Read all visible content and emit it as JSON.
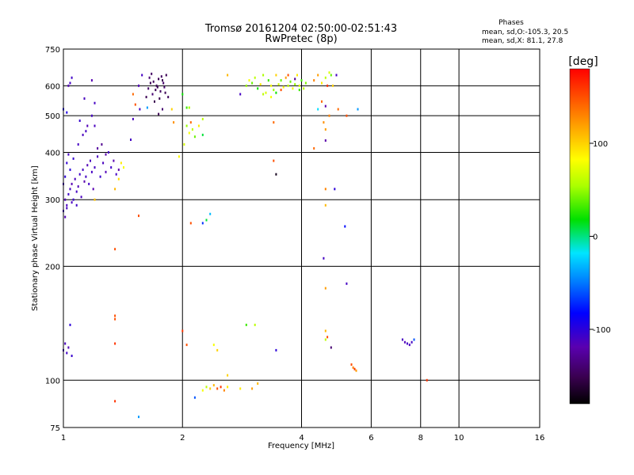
{
  "chart_data": {
    "type": "scatter",
    "title": "Tromsø 20161204 02:50:00-02:51:43",
    "subtitle": "RwPretec (8p)",
    "stats": {
      "heading": "Phases",
      "line1": "mean, sd,O:-105.3, 20.5",
      "line2": "mean, sd,X:  81.1, 27.8"
    },
    "xlabel": "Frequency [MHz]",
    "ylabel": "Stationary phase Virtual Height [km]",
    "x_scale": "log",
    "y_scale": "log",
    "xlim": [
      1,
      16
    ],
    "ylim": [
      75,
      750
    ],
    "x_ticks": [
      1,
      2,
      4,
      6,
      8,
      10,
      16
    ],
    "x_tick_labels": [
      "1",
      "2",
      "4",
      "6",
      "8",
      "10",
      "16"
    ],
    "y_ticks": [
      75,
      100,
      200,
      300,
      400,
      500,
      600,
      750
    ],
    "y_tick_labels": [
      "75",
      "100",
      "200",
      "300",
      "400",
      "500",
      "600",
      "750"
    ],
    "grid": true,
    "colorbar": {
      "label": "[deg]",
      "range": [
        -180,
        180
      ],
      "ticks": [
        100,
        0,
        -100
      ],
      "tick_labels": [
        "100",
        "0",
        "-100"
      ]
    },
    "points": [
      [
        1.0,
        280,
        -110
      ],
      [
        1.01,
        300,
        -115
      ],
      [
        1.02,
        290,
        -112
      ],
      [
        1.03,
        310,
        -108
      ],
      [
        1.04,
        320,
        -110
      ],
      [
        1.05,
        330,
        -118
      ],
      [
        1.06,
        300,
        -105
      ],
      [
        1.07,
        340,
        -112
      ],
      [
        1.08,
        315,
        -110
      ],
      [
        1.09,
        325,
        -115
      ],
      [
        1.1,
        350,
        -108
      ],
      [
        1.11,
        305,
        -112
      ],
      [
        1.12,
        360,
        -110
      ],
      [
        1.13,
        335,
        -120
      ],
      [
        1.14,
        345,
        -110
      ],
      [
        1.15,
        370,
        -115
      ],
      [
        1.16,
        330,
        -108
      ],
      [
        1.17,
        380,
        -112
      ],
      [
        1.18,
        355,
        -110
      ],
      [
        1.19,
        320,
        -118
      ],
      [
        1.2,
        365,
        -110
      ],
      [
        1.22,
        390,
        -112
      ],
      [
        1.24,
        345,
        -106
      ],
      [
        1.26,
        375,
        -112
      ],
      [
        1.28,
        355,
        -115
      ],
      [
        1.3,
        400,
        -110
      ],
      [
        1.32,
        365,
        -108
      ],
      [
        1.34,
        380,
        -118
      ],
      [
        1.36,
        350,
        -110
      ],
      [
        1.38,
        360,
        -120
      ],
      [
        1.01,
        345,
        -100
      ],
      [
        1.02,
        375,
        -102
      ],
      [
        1.04,
        360,
        -98
      ],
      [
        1.06,
        385,
        -104
      ],
      [
        1.03,
        395,
        -110
      ],
      [
        1.0,
        330,
        -112
      ],
      [
        1.01,
        270,
        -115
      ],
      [
        1.02,
        285,
        -110
      ],
      [
        1.05,
        295,
        -112
      ],
      [
        1.08,
        290,
        -108
      ],
      [
        1.09,
        420,
        -110
      ],
      [
        1.12,
        445,
        -112
      ],
      [
        1.15,
        470,
        -115
      ],
      [
        1.18,
        500,
        -110
      ],
      [
        1.2,
        470,
        -112
      ],
      [
        1.14,
        455,
        -110
      ],
      [
        1.22,
        410,
        -125
      ],
      [
        1.25,
        420,
        -130
      ],
      [
        1.28,
        395,
        -120
      ],
      [
        1.1,
        485,
        -105
      ],
      [
        1.04,
        610,
        -110
      ],
      [
        1.05,
        630,
        -108
      ],
      [
        1.03,
        600,
        -115
      ],
      [
        1.13,
        555,
        -112
      ],
      [
        1.18,
        620,
        -118
      ],
      [
        1.2,
        540,
        -110
      ],
      [
        1.0,
        520,
        -90
      ],
      [
        1.02,
        510,
        -95
      ],
      [
        1.4,
        375,
        90
      ],
      [
        1.42,
        365,
        80
      ],
      [
        1.38,
        340,
        95
      ],
      [
        1.35,
        320,
        110
      ],
      [
        1.2,
        300,
        105
      ],
      [
        1.48,
        432,
        -110
      ],
      [
        1.5,
        490,
        -112
      ],
      [
        1.55,
        600,
        -115
      ],
      [
        1.56,
        520,
        -108
      ],
      [
        1.58,
        640,
        -110
      ],
      [
        1.62,
        560,
        -150
      ],
      [
        1.64,
        590,
        -145
      ],
      [
        1.66,
        610,
        -150
      ],
      [
        1.68,
        570,
        -140
      ],
      [
        1.7,
        545,
        -152
      ],
      [
        1.72,
        600,
        -148
      ],
      [
        1.74,
        625,
        -150
      ],
      [
        1.76,
        580,
        -146
      ],
      [
        1.78,
        620,
        -150
      ],
      [
        1.8,
        595,
        -142
      ],
      [
        1.82,
        640,
        -150
      ],
      [
        1.84,
        560,
        -148
      ],
      [
        1.65,
        630,
        -140
      ],
      [
        1.67,
        645,
        -146
      ],
      [
        1.75,
        555,
        -152
      ],
      [
        1.79,
        610,
        -144
      ],
      [
        1.73,
        595,
        -150
      ],
      [
        1.69,
        615,
        -148
      ],
      [
        1.81,
        575,
        -150
      ],
      [
        1.77,
        635,
        -146
      ],
      [
        1.71,
        585,
        -150
      ],
      [
        1.78,
        520,
        -140
      ],
      [
        1.74,
        505,
        -150
      ],
      [
        1.52,
        535,
        150
      ],
      [
        1.63,
        525,
        -40
      ],
      [
        1.5,
        570,
        140
      ],
      [
        1.9,
        480,
        125
      ],
      [
        1.88,
        520,
        100
      ],
      [
        2.05,
        470,
        50
      ],
      [
        2.08,
        450,
        80
      ],
      [
        2.1,
        480,
        140
      ],
      [
        2.12,
        460,
        60
      ],
      [
        2.15,
        440,
        40
      ],
      [
        2.2,
        470,
        90
      ],
      [
        2.25,
        490,
        60
      ],
      [
        2.05,
        525,
        30
      ],
      [
        2.02,
        420,
        70
      ],
      [
        1.96,
        390,
        85
      ],
      [
        2.25,
        445,
        10
      ],
      [
        2.0,
        570,
        20
      ],
      [
        2.08,
        525,
        55
      ],
      [
        2.25,
        260,
        -70
      ],
      [
        2.35,
        275,
        -30
      ],
      [
        2.3,
        265,
        10
      ],
      [
        2.1,
        260,
        150
      ],
      [
        2.8,
        570,
        -110
      ],
      [
        2.9,
        600,
        50
      ],
      [
        2.95,
        620,
        80
      ],
      [
        3.0,
        610,
        40
      ],
      [
        3.05,
        630,
        60
      ],
      [
        3.1,
        590,
        20
      ],
      [
        3.15,
        605,
        90
      ],
      [
        3.2,
        640,
        55
      ],
      [
        3.25,
        575,
        70
      ],
      [
        3.3,
        620,
        30
      ],
      [
        3.35,
        600,
        80
      ],
      [
        3.4,
        585,
        50
      ],
      [
        3.45,
        640,
        100
      ],
      [
        3.5,
        605,
        65
      ],
      [
        3.55,
        620,
        40
      ],
      [
        3.6,
        595,
        85
      ],
      [
        3.65,
        630,
        120
      ],
      [
        3.7,
        600,
        60
      ],
      [
        3.75,
        615,
        40
      ],
      [
        3.8,
        590,
        80
      ],
      [
        3.85,
        605,
        50
      ],
      [
        3.9,
        640,
        90
      ],
      [
        3.95,
        600,
        70
      ],
      [
        4.0,
        620,
        30
      ],
      [
        4.05,
        590,
        60
      ],
      [
        3.45,
        575,
        20
      ],
      [
        3.55,
        585,
        150
      ],
      [
        3.7,
        640,
        150
      ],
      [
        3.85,
        625,
        -130
      ],
      [
        3.95,
        585,
        30
      ],
      [
        4.1,
        610,
        45
      ],
      [
        3.2,
        570,
        60
      ],
      [
        3.35,
        560,
        80
      ],
      [
        2.6,
        640,
        110
      ],
      [
        3.4,
        480,
        140
      ],
      [
        3.4,
        380,
        150
      ],
      [
        3.45,
        350,
        -170
      ],
      [
        3.45,
        120,
        -100
      ],
      [
        4.3,
        620,
        130
      ],
      [
        4.4,
        640,
        120
      ],
      [
        4.5,
        610,
        90
      ],
      [
        4.6,
        630,
        60
      ],
      [
        4.7,
        650,
        70
      ],
      [
        4.8,
        600,
        100
      ],
      [
        4.9,
        640,
        -110
      ],
      [
        4.75,
        640,
        40
      ],
      [
        4.65,
        600,
        160
      ],
      [
        4.4,
        520,
        -20
      ],
      [
        4.5,
        545,
        140
      ],
      [
        4.6,
        530,
        -120
      ],
      [
        4.7,
        500,
        130
      ],
      [
        4.55,
        480,
        125
      ],
      [
        4.95,
        520,
        140
      ],
      [
        5.2,
        500,
        150
      ],
      [
        4.6,
        460,
        120
      ],
      [
        4.6,
        430,
        -120
      ],
      [
        4.85,
        320,
        -100
      ],
      [
        4.6,
        320,
        130
      ],
      [
        4.6,
        290,
        110
      ],
      [
        4.3,
        410,
        140
      ],
      [
        5.55,
        520,
        -40
      ],
      [
        4.55,
        210,
        -110
      ],
      [
        5.2,
        180,
        -110
      ],
      [
        4.6,
        175,
        120
      ],
      [
        5.15,
        255,
        -80
      ],
      [
        4.6,
        135,
        110
      ],
      [
        4.65,
        130,
        150
      ],
      [
        4.6,
        128,
        60
      ],
      [
        4.75,
        122,
        -140
      ],
      [
        5.35,
        110,
        150
      ],
      [
        5.4,
        108,
        130
      ],
      [
        5.45,
        107,
        160
      ],
      [
        5.5,
        106,
        120
      ],
      [
        7.2,
        128,
        -110
      ],
      [
        7.3,
        126,
        -115
      ],
      [
        7.4,
        125,
        -108
      ],
      [
        7.5,
        124,
        -112
      ],
      [
        7.6,
        126,
        -110
      ],
      [
        7.7,
        128,
        -60
      ],
      [
        8.3,
        100,
        160
      ],
      [
        1.0,
        120,
        -110
      ],
      [
        1.01,
        125,
        -112
      ],
      [
        1.02,
        118,
        -108
      ],
      [
        1.03,
        122,
        -115
      ],
      [
        1.04,
        140,
        -100
      ],
      [
        1.05,
        116,
        -105
      ],
      [
        1.35,
        145,
        150
      ],
      [
        1.35,
        148,
        150
      ],
      [
        1.35,
        125,
        160
      ],
      [
        1.35,
        88,
        160
      ],
      [
        1.35,
        222,
        150
      ],
      [
        1.55,
        272,
        150
      ],
      [
        1.55,
        80,
        -40
      ],
      [
        2.0,
        135,
        160
      ],
      [
        2.05,
        124,
        150
      ],
      [
        2.25,
        94,
        80
      ],
      [
        2.3,
        96,
        60
      ],
      [
        2.35,
        95,
        100
      ],
      [
        2.4,
        97,
        110
      ],
      [
        2.45,
        95,
        150
      ],
      [
        2.5,
        96,
        160
      ],
      [
        2.55,
        94,
        130
      ],
      [
        2.6,
        96,
        90
      ],
      [
        2.15,
        90,
        -60
      ],
      [
        2.4,
        124,
        80
      ],
      [
        2.45,
        120,
        100
      ],
      [
        2.6,
        103,
        100
      ],
      [
        2.9,
        140,
        30
      ],
      [
        3.0,
        95,
        120
      ],
      [
        3.1,
        98,
        110
      ],
      [
        2.8,
        95,
        90
      ],
      [
        3.05,
        140,
        60
      ]
    ]
  }
}
